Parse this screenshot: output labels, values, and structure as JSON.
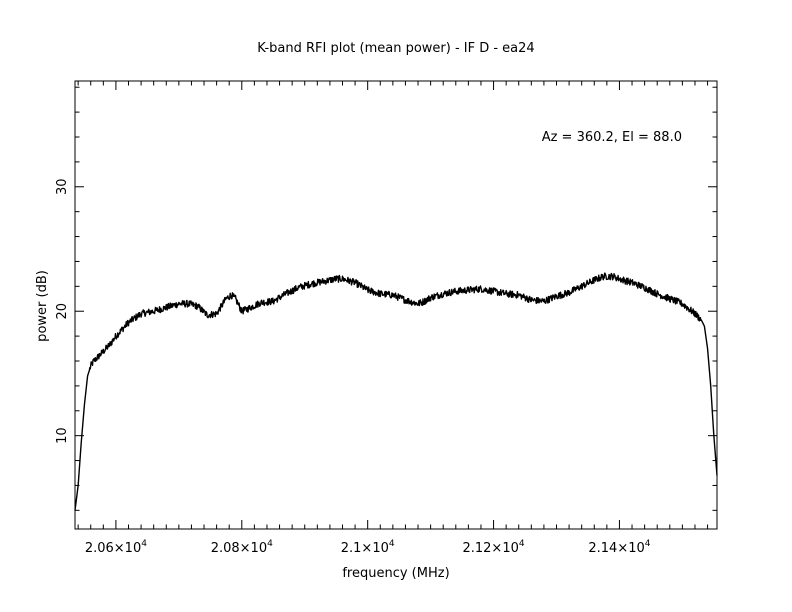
{
  "chart_data": {
    "type": "line",
    "title": "K-band RFI plot (mean power) - IF D - ea24",
    "xlabel": "frequency (MHz)",
    "ylabel": "power (dB)",
    "annotation": "Az = 360.2, El = 88.0",
    "xlim": [
      20535,
      21555
    ],
    "ylim": [
      2.5,
      38.5
    ],
    "x_major_ticks": [
      20600,
      20800,
      21000,
      21200,
      21400
    ],
    "x_tick_labels": [
      {
        "mant": "2.06",
        "exp": "4"
      },
      {
        "mant": "2.08",
        "exp": "4"
      },
      {
        "mant": "2.1",
        "exp": "4"
      },
      {
        "mant": "2.12",
        "exp": "4"
      },
      {
        "mant": "2.14",
        "exp": "4"
      }
    ],
    "y_major_ticks": [
      10,
      20,
      30
    ],
    "y_tick_labels": [
      "10",
      "20",
      "30"
    ],
    "grid": false,
    "series": [
      {
        "color": "#000000",
        "x": [
          20535,
          20540,
          20545,
          20550,
          20555,
          20560,
          20565,
          20575,
          20590,
          20600,
          20620,
          20640,
          20660,
          20680,
          20700,
          20715,
          20730,
          20745,
          20760,
          20775,
          20783,
          20790,
          20800,
          20810,
          20830,
          20850,
          20870,
          20890,
          20910,
          20930,
          20950,
          20960,
          20980,
          21000,
          21020,
          21040,
          21060,
          21080,
          21090,
          21100,
          21120,
          21140,
          21160,
          21180,
          21200,
          21220,
          21240,
          21260,
          21280,
          21300,
          21320,
          21340,
          21360,
          21375,
          21390,
          21400,
          21420,
          21440,
          21460,
          21480,
          21500,
          21520,
          21530,
          21535,
          21540,
          21545,
          21550,
          21555
        ],
        "y": [
          4.0,
          6.0,
          9.5,
          12.5,
          14.8,
          15.6,
          16.0,
          16.5,
          17.3,
          18.0,
          19.1,
          19.8,
          20.0,
          20.3,
          20.6,
          20.6,
          20.4,
          19.7,
          19.8,
          21.0,
          21.3,
          21.0,
          20.0,
          20.2,
          20.7,
          20.8,
          21.4,
          21.9,
          22.2,
          22.4,
          22.6,
          22.6,
          22.3,
          21.7,
          21.4,
          21.3,
          20.9,
          20.6,
          20.8,
          21.1,
          21.4,
          21.6,
          21.7,
          21.8,
          21.6,
          21.4,
          21.3,
          20.9,
          20.8,
          21.2,
          21.5,
          22.0,
          22.5,
          22.8,
          22.8,
          22.6,
          22.3,
          21.9,
          21.4,
          21.0,
          20.6,
          19.8,
          19.3,
          18.8,
          17.0,
          14.0,
          10.0,
          6.8
        ]
      }
    ]
  }
}
